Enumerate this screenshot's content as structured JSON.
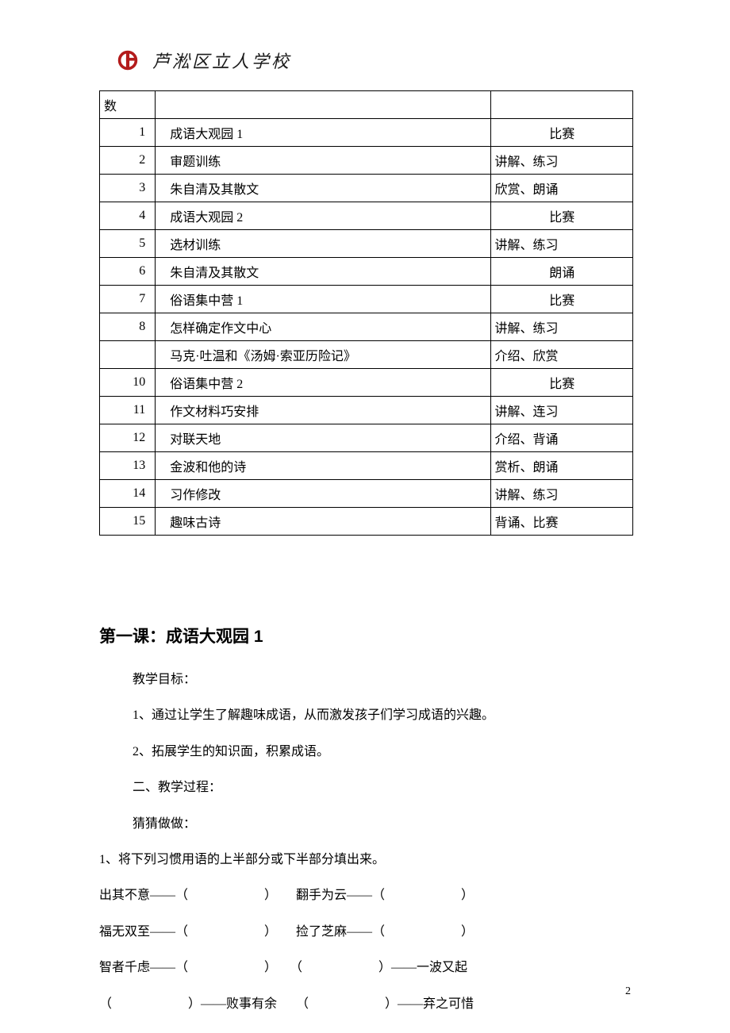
{
  "header": {
    "school_name": "芦淞区立人学校",
    "logo_color": "#b31b1b"
  },
  "table": {
    "header_col1": "数",
    "rows": [
      {
        "num": "1",
        "content": "成语大观园 1",
        "method": "比赛",
        "method_align": "center"
      },
      {
        "num": "2",
        "content": "审题训练",
        "method": "讲解、练习",
        "method_align": "left"
      },
      {
        "num": "3",
        "content": "朱自清及其散文",
        "method": "欣赏、朗诵",
        "method_align": "left"
      },
      {
        "num": "4",
        "content": "成语大观园 2",
        "method": "比赛",
        "method_align": "center"
      },
      {
        "num": "5",
        "content": "选材训练",
        "method": "讲解、练习",
        "method_align": "left"
      },
      {
        "num": "6",
        "content": "朱自清及其散文",
        "method": "朗诵",
        "method_align": "center"
      },
      {
        "num": "7",
        "content": "俗语集中营 1",
        "method": "比赛",
        "method_align": "center"
      },
      {
        "num": "8",
        "content": "怎样确定作文中心",
        "method": "讲解、练习",
        "method_align": "left"
      },
      {
        "num": "",
        "content": "马克·吐温和《汤姆·索亚历险记》",
        "method": "介绍、欣赏",
        "method_align": "left"
      },
      {
        "num": "10",
        "content": "俗语集中营 2",
        "method": "比赛",
        "method_align": "center"
      },
      {
        "num": "11",
        "content": "作文材料巧安排",
        "method": "讲解、连习",
        "method_align": "left"
      },
      {
        "num": "12",
        "content": "对联天地",
        "method": "介绍、背诵",
        "method_align": "left"
      },
      {
        "num": "13",
        "content": "金波和他的诗",
        "method": "赏析、朗诵",
        "method_align": "left"
      },
      {
        "num": "14",
        "content": "习作修改",
        "method": "讲解、练习",
        "method_align": "left"
      },
      {
        "num": "15",
        "content": "趣味古诗",
        "method": "背诵、比赛",
        "method_align": "left"
      }
    ]
  },
  "lesson": {
    "title": "第一课：成语大观园 1",
    "goal_label": "教学目标：",
    "goal1": "1、通过让学生了解趣味成语，从而激发孩子们学习成语的兴趣。",
    "goal2": "2、拓展学生的知识面，积累成语。",
    "process_label": "二、教学过程：",
    "guess_label": "猜猜做做：",
    "ex1_intro": "1、将下列习惯用语的上半部分或下半部分填出来。",
    "ex_line1": "出其不意——（　　　　　　）　　翻手为云——（　　　　　　）",
    "ex_line2": "福无双至——（　　　　　　）　　捡了芝麻——（　　　　　　）",
    "ex_line3": "智者千虑——（　　　　　　）　　（　　　　　　）——一波又起",
    "ex_line4": "（　　　　　　）——败事有余　　（　　　　　　）——弃之可惜"
  },
  "page_number": "2"
}
